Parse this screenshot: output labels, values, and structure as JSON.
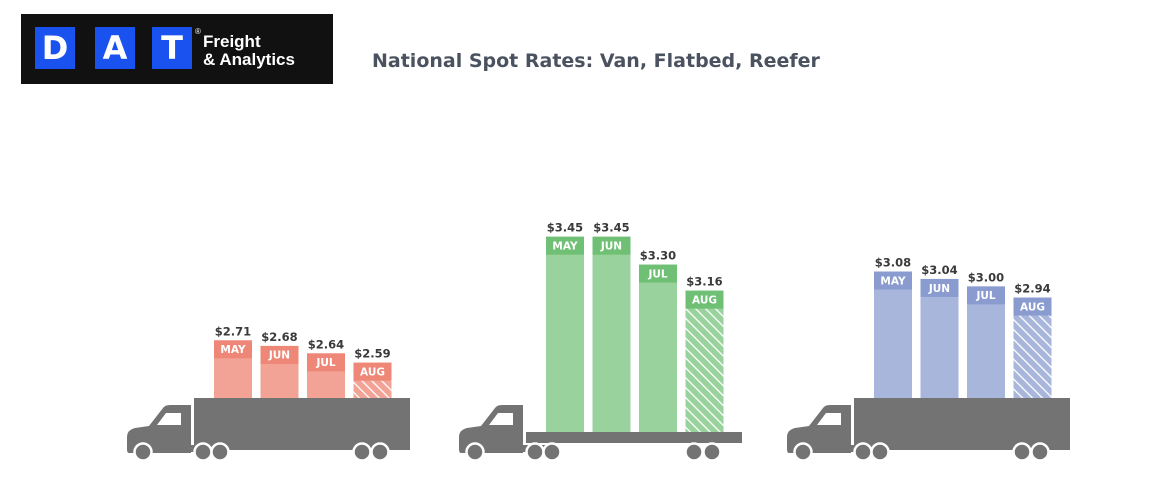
{
  "logo": {
    "letters": [
      "D",
      "A",
      "T"
    ],
    "line1": "Freight",
    "line2": "& Analytics",
    "reg": "®",
    "brand_color": "#1a52f0"
  },
  "chart_data": {
    "type": "bar",
    "title": "National Spot Rates: Van, Flatbed, Reefer",
    "unit": "$",
    "groups": [
      {
        "truck": "van",
        "color": "#f2a395",
        "label_color": "#ee8777",
        "categories": [
          "MAY",
          "JUN",
          "JUL",
          "AUG"
        ],
        "values": [
          2.71,
          2.68,
          2.64,
          2.59
        ],
        "value_labels": [
          "$2.71",
          "$2.68",
          "$2.64",
          "$2.59"
        ],
        "hatched": [
          false,
          false,
          false,
          true
        ]
      },
      {
        "truck": "flatbed",
        "color": "#99d29c",
        "label_color": "#6fc075",
        "categories": [
          "MAY",
          "JUN",
          "JUL",
          "AUG"
        ],
        "values": [
          3.45,
          3.45,
          3.3,
          3.16
        ],
        "value_labels": [
          "$3.45",
          "$3.45",
          "$3.30",
          "$3.16"
        ],
        "hatched": [
          false,
          false,
          false,
          true
        ]
      },
      {
        "truck": "reefer",
        "color": "#a9b6dc",
        "label_color": "#8a9bd0",
        "categories": [
          "MAY",
          "JUN",
          "JUL",
          "AUG"
        ],
        "values": [
          3.08,
          3.04,
          3.0,
          2.94
        ],
        "value_labels": [
          "$3.08",
          "$3.04",
          "$3.00",
          "$2.94"
        ],
        "hatched": [
          false,
          false,
          false,
          true
        ]
      }
    ]
  }
}
